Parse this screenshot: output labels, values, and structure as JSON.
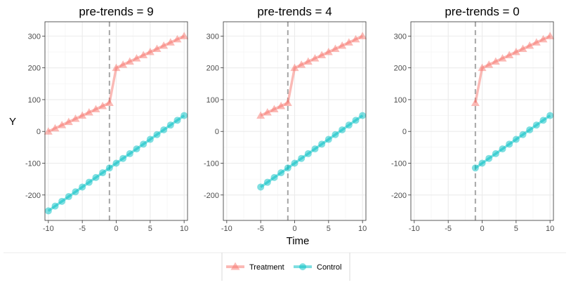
{
  "figure": {
    "xlabel": "Time",
    "ylabel": "Y",
    "legend": {
      "placement": "bottom",
      "items": [
        {
          "label": "Treatment",
          "color": "#F8766D",
          "shape": "triangle"
        },
        {
          "label": "Control",
          "color": "#00BFC4",
          "shape": "circle"
        }
      ]
    }
  },
  "chart_data": [
    {
      "type": "line",
      "title": "pre-trends = 9",
      "xlim": [
        -10.5,
        10.5
      ],
      "ylim": [
        -280,
        345
      ],
      "xticks": [
        -10,
        -5,
        0,
        5,
        10
      ],
      "yticks": [
        -200,
        -100,
        0,
        100,
        200,
        300
      ],
      "ytick_labels": [
        "-200",
        "-100",
        "0",
        "100",
        "200",
        "300"
      ],
      "grid": true,
      "treatment_line": -1,
      "series": [
        {
          "name": "Treatment",
          "x": [
            -10,
            -9,
            -8,
            -7,
            -6,
            -5,
            -4,
            -3,
            -2,
            -1,
            0,
            1,
            2,
            3,
            4,
            5,
            6,
            7,
            8,
            9,
            10
          ],
          "y": [
            0,
            10,
            20,
            30,
            40,
            50,
            60,
            70,
            80,
            90,
            200,
            210,
            220,
            230,
            240,
            250,
            260,
            270,
            280,
            290,
            300
          ]
        },
        {
          "name": "Control",
          "x": [
            -10,
            -9,
            -8,
            -7,
            -6,
            -5,
            -4,
            -3,
            -2,
            -1,
            0,
            1,
            2,
            3,
            4,
            5,
            6,
            7,
            8,
            9,
            10
          ],
          "y": [
            -250,
            -235,
            -220,
            -205,
            -190,
            -175,
            -160,
            -145,
            -130,
            -115,
            -100,
            -85,
            -70,
            -55,
            -40,
            -25,
            -10,
            5,
            20,
            35,
            50
          ]
        }
      ]
    },
    {
      "type": "line",
      "title": "pre-trends = 4",
      "xlim": [
        -10.5,
        10.5
      ],
      "ylim": [
        -280,
        345
      ],
      "xticks": [
        -10,
        -5,
        0,
        5,
        10
      ],
      "yticks": [
        -200,
        -100,
        0,
        100,
        200,
        300
      ],
      "ytick_labels": [
        "-200",
        "-100",
        "0",
        "100",
        "200",
        "300"
      ],
      "grid": true,
      "treatment_line": -1,
      "series": [
        {
          "name": "Treatment",
          "x": [
            -5,
            -4,
            -3,
            -2,
            -1,
            0,
            1,
            2,
            3,
            4,
            5,
            6,
            7,
            8,
            9,
            10
          ],
          "y": [
            50,
            60,
            70,
            80,
            90,
            200,
            210,
            220,
            230,
            240,
            250,
            260,
            270,
            280,
            290,
            300
          ]
        },
        {
          "name": "Control",
          "x": [
            -5,
            -4,
            -3,
            -2,
            -1,
            0,
            1,
            2,
            3,
            4,
            5,
            6,
            7,
            8,
            9,
            10
          ],
          "y": [
            -175,
            -160,
            -145,
            -130,
            -115,
            -100,
            -85,
            -70,
            -55,
            -40,
            -25,
            -10,
            5,
            20,
            35,
            50
          ]
        }
      ]
    },
    {
      "type": "line",
      "title": "pre-trends = 0",
      "xlim": [
        -10.5,
        10.5
      ],
      "ylim": [
        -280,
        345
      ],
      "xticks": [
        -10,
        -5,
        0,
        5,
        10
      ],
      "yticks": [
        -200,
        -100,
        0,
        100,
        200,
        300
      ],
      "ytick_labels": [
        "-200",
        "-100",
        "0",
        "100",
        "200",
        "300"
      ],
      "grid": true,
      "treatment_line": -1,
      "series": [
        {
          "name": "Treatment",
          "x": [
            -1,
            0,
            1,
            2,
            3,
            4,
            5,
            6,
            7,
            8,
            9,
            10
          ],
          "y": [
            90,
            200,
            210,
            220,
            230,
            240,
            250,
            260,
            270,
            280,
            290,
            300
          ]
        },
        {
          "name": "Control",
          "x": [
            -1,
            0,
            1,
            2,
            3,
            4,
            5,
            6,
            7,
            8,
            9,
            10
          ],
          "y": [
            -115,
            -100,
            -85,
            -70,
            -55,
            -40,
            -25,
            -10,
            5,
            20,
            35,
            50
          ]
        }
      ]
    }
  ]
}
